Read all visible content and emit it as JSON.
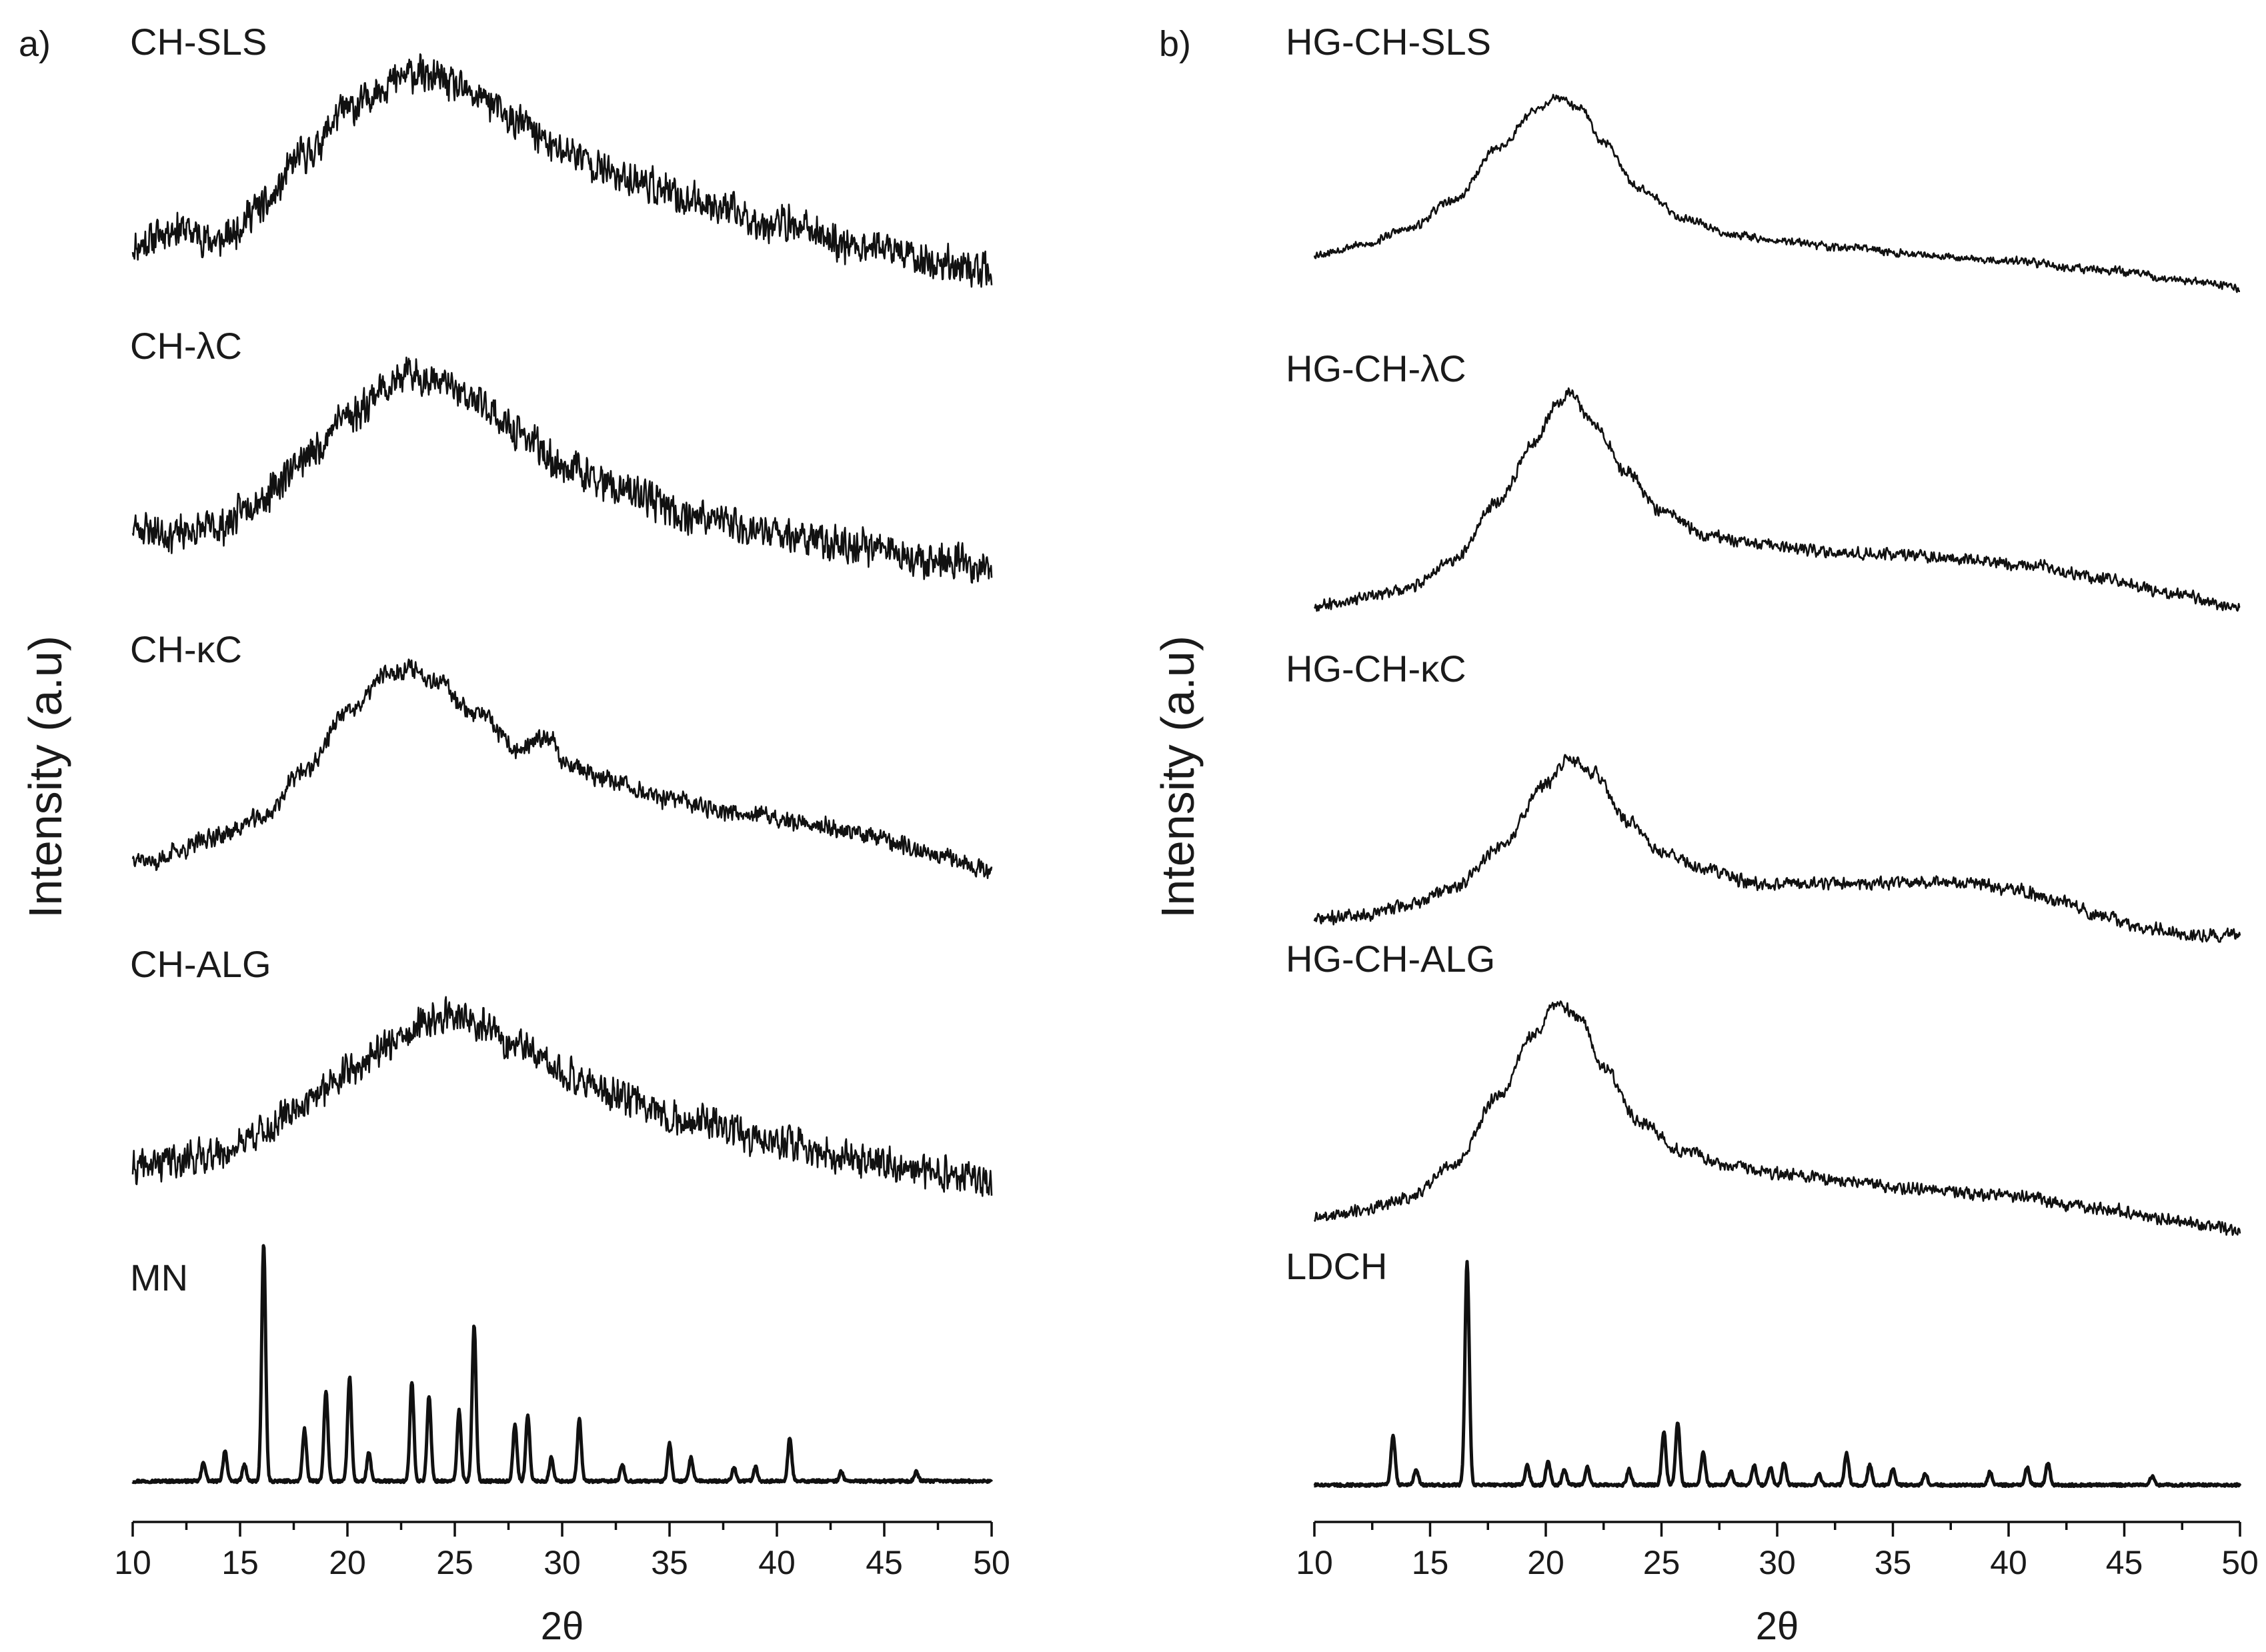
{
  "chart_data": [
    {
      "type": "line",
      "panel_label": "a)",
      "ylabel": "Intensity (a.u)",
      "xlabel": "2θ",
      "xlim": [
        10,
        50
      ],
      "xticks": [
        "10",
        "15",
        "20",
        "25",
        "30",
        "35",
        "40",
        "45",
        "50"
      ],
      "grid": false,
      "series": [
        {
          "name": "CH-SLS",
          "kind": "amorphous",
          "noise": 0.19,
          "seed": 11,
          "x": [
            10,
            12,
            14,
            16,
            18,
            20,
            22,
            23,
            24,
            26,
            28,
            30,
            33,
            36,
            40,
            44,
            48,
            50
          ],
          "y": [
            0.18,
            0.26,
            0.2,
            0.35,
            0.58,
            0.78,
            0.9,
            0.94,
            0.92,
            0.84,
            0.72,
            0.6,
            0.48,
            0.38,
            0.28,
            0.18,
            0.1,
            0.06
          ]
        },
        {
          "name": "CH-λC",
          "kind": "amorphous",
          "noise": 0.19,
          "seed": 23,
          "x": [
            10,
            12,
            14,
            16,
            18,
            20,
            22,
            23,
            24,
            26,
            28,
            30,
            33,
            36,
            40,
            44,
            48,
            50
          ],
          "y": [
            0.25,
            0.22,
            0.25,
            0.38,
            0.55,
            0.74,
            0.88,
            0.92,
            0.9,
            0.8,
            0.66,
            0.52,
            0.4,
            0.3,
            0.22,
            0.16,
            0.1,
            0.07
          ]
        },
        {
          "name": "CH-κC",
          "kind": "amorphous",
          "noise": 0.1,
          "seed": 37,
          "x": [
            10,
            11,
            12,
            14,
            16,
            18,
            20,
            22,
            23,
            24,
            26,
            28,
            29.5,
            30,
            32,
            35,
            38,
            41,
            44,
            47,
            50
          ],
          "y": [
            0.08,
            0.05,
            0.1,
            0.17,
            0.25,
            0.46,
            0.72,
            0.9,
            0.92,
            0.87,
            0.72,
            0.55,
            0.62,
            0.5,
            0.42,
            0.33,
            0.28,
            0.23,
            0.18,
            0.1,
            0.02
          ]
        },
        {
          "name": "CH-ALG",
          "kind": "amorphous",
          "noise": 0.19,
          "seed": 41,
          "x": [
            10,
            12,
            14,
            16,
            18,
            20,
            22,
            24,
            25,
            26,
            28,
            30,
            33,
            36,
            40,
            44,
            48,
            50
          ],
          "y": [
            0.1,
            0.14,
            0.17,
            0.27,
            0.4,
            0.55,
            0.68,
            0.78,
            0.82,
            0.76,
            0.66,
            0.54,
            0.42,
            0.32,
            0.22,
            0.14,
            0.07,
            0.05
          ]
        },
        {
          "name": "MN",
          "kind": "crystalline",
          "baseline": 0.04,
          "peaks": [
            {
              "pos": 13.3,
              "height": 0.08
            },
            {
              "pos": 14.3,
              "height": 0.13
            },
            {
              "pos": 15.2,
              "height": 0.07
            },
            {
              "pos": 16.1,
              "height": 1.0
            },
            {
              "pos": 18.0,
              "height": 0.22
            },
            {
              "pos": 19.0,
              "height": 0.38
            },
            {
              "pos": 20.1,
              "height": 0.44
            },
            {
              "pos": 21.0,
              "height": 0.12
            },
            {
              "pos": 23.0,
              "height": 0.42
            },
            {
              "pos": 23.8,
              "height": 0.36
            },
            {
              "pos": 25.2,
              "height": 0.3
            },
            {
              "pos": 25.9,
              "height": 0.66
            },
            {
              "pos": 27.8,
              "height": 0.24
            },
            {
              "pos": 28.4,
              "height": 0.28
            },
            {
              "pos": 29.5,
              "height": 0.1
            },
            {
              "pos": 30.8,
              "height": 0.26
            },
            {
              "pos": 32.8,
              "height": 0.07
            },
            {
              "pos": 35.0,
              "height": 0.16
            },
            {
              "pos": 36.0,
              "height": 0.1
            },
            {
              "pos": 38.0,
              "height": 0.06
            },
            {
              "pos": 39.0,
              "height": 0.06
            },
            {
              "pos": 40.6,
              "height": 0.18
            },
            {
              "pos": 43.0,
              "height": 0.04
            },
            {
              "pos": 46.5,
              "height": 0.04
            }
          ]
        }
      ]
    },
    {
      "type": "line",
      "panel_label": "b)",
      "ylabel": "Intensity (a.u)",
      "xlabel": "2θ",
      "xlim": [
        10,
        50
      ],
      "xticks": [
        "10",
        "15",
        "20",
        "25",
        "30",
        "35",
        "40",
        "45",
        "50"
      ],
      "grid": false,
      "series": [
        {
          "name": "HG-CH-SLS",
          "kind": "amorphous",
          "noise": 0.045,
          "seed": 53,
          "x": [
            10,
            12,
            14,
            16,
            18,
            19.5,
            20.5,
            21.5,
            22.5,
            24,
            26,
            28,
            30,
            33,
            36,
            40,
            44,
            48,
            50
          ],
          "y": [
            0.22,
            0.26,
            0.33,
            0.46,
            0.7,
            0.86,
            0.92,
            0.87,
            0.72,
            0.52,
            0.38,
            0.31,
            0.28,
            0.25,
            0.22,
            0.19,
            0.15,
            0.1,
            0.07
          ]
        },
        {
          "name": "HG-CH-λC",
          "kind": "amorphous",
          "noise": 0.06,
          "seed": 67,
          "x": [
            10,
            12,
            14,
            16,
            18,
            19.5,
            20.5,
            21,
            22,
            23.5,
            25,
            27,
            29,
            32,
            35,
            38,
            41,
            44,
            47,
            50
          ],
          "y": [
            0.05,
            0.08,
            0.12,
            0.24,
            0.5,
            0.75,
            0.92,
            0.96,
            0.84,
            0.62,
            0.45,
            0.35,
            0.31,
            0.28,
            0.27,
            0.25,
            0.22,
            0.17,
            0.1,
            0.04
          ]
        },
        {
          "name": "HG-CH-κC",
          "kind": "amorphous",
          "noise": 0.07,
          "seed": 71,
          "x": [
            10,
            12,
            14,
            16,
            18,
            20,
            21,
            22,
            23.5,
            25,
            27,
            29,
            32,
            35,
            38,
            40,
            42,
            44,
            46,
            48
          ],
          "y": [
            0.08,
            0.1,
            0.14,
            0.22,
            0.4,
            0.68,
            0.8,
            0.74,
            0.52,
            0.38,
            0.3,
            0.24,
            0.24,
            0.24,
            0.24,
            0.22,
            0.17,
            0.1,
            0.04,
            0.01
          ]
        },
        {
          "name": "HG-CH-ALG",
          "kind": "amorphous",
          "noise": 0.06,
          "seed": 89,
          "x": [
            10,
            12,
            14,
            16,
            18,
            19.5,
            20.5,
            21.5,
            22.5,
            24,
            26,
            28,
            30,
            33,
            36,
            40,
            44,
            48,
            50
          ],
          "y": [
            0.05,
            0.08,
            0.13,
            0.26,
            0.55,
            0.8,
            0.92,
            0.86,
            0.66,
            0.44,
            0.32,
            0.26,
            0.23,
            0.2,
            0.17,
            0.14,
            0.09,
            0.03,
            0.0
          ]
        },
        {
          "name": "LDCH",
          "kind": "crystalline",
          "baseline": 0.04,
          "peaks": [
            {
              "pos": 13.4,
              "height": 0.22
            },
            {
              "pos": 14.4,
              "height": 0.07
            },
            {
              "pos": 16.6,
              "height": 1.0
            },
            {
              "pos": 19.2,
              "height": 0.09
            },
            {
              "pos": 20.1,
              "height": 0.11
            },
            {
              "pos": 20.8,
              "height": 0.07
            },
            {
              "pos": 21.8,
              "height": 0.08
            },
            {
              "pos": 23.6,
              "height": 0.07
            },
            {
              "pos": 25.1,
              "height": 0.24
            },
            {
              "pos": 25.7,
              "height": 0.28
            },
            {
              "pos": 26.8,
              "height": 0.15
            },
            {
              "pos": 28.0,
              "height": 0.06
            },
            {
              "pos": 29.0,
              "height": 0.09
            },
            {
              "pos": 29.7,
              "height": 0.08
            },
            {
              "pos": 30.3,
              "height": 0.1
            },
            {
              "pos": 31.8,
              "height": 0.05
            },
            {
              "pos": 33.0,
              "height": 0.14
            },
            {
              "pos": 34.0,
              "height": 0.09
            },
            {
              "pos": 35.0,
              "height": 0.07
            },
            {
              "pos": 36.4,
              "height": 0.05
            },
            {
              "pos": 39.2,
              "height": 0.06
            },
            {
              "pos": 40.8,
              "height": 0.08
            },
            {
              "pos": 41.7,
              "height": 0.1
            },
            {
              "pos": 46.2,
              "height": 0.04
            }
          ]
        }
      ]
    }
  ]
}
